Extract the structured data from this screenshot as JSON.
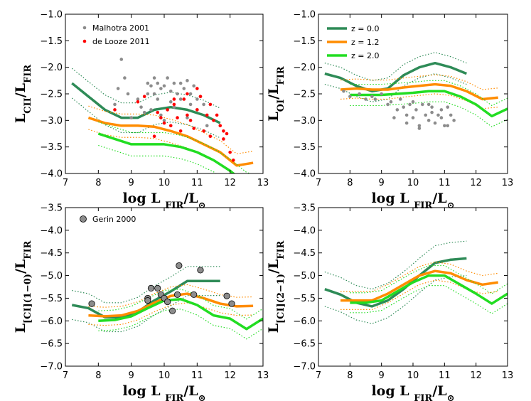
{
  "figure": {
    "xlabel": "log L",
    "xlabel_sub": "FIR",
    "xlabel_unit": "/L",
    "xlabel_unit_sub": "⊙"
  },
  "series_names": {
    "z0": "z = 0.0",
    "z12": "z = 1.2",
    "z20": "z = 2.0"
  },
  "colors": {
    "z0": "#2e8b57",
    "z12": "#ff8c00",
    "z20": "#22dd22",
    "gray": "#8c8c8c",
    "red": "#ff0000"
  },
  "chart_data": [
    {
      "id": "cii",
      "type": "line",
      "title": "",
      "ylabel": "L",
      "ylabel_sub": "CII",
      "ylabel_tail": "/L",
      "ylabel_tail_sub": "FIR",
      "xlim": [
        7,
        13
      ],
      "ylim": [
        -4.0,
        -1.0
      ],
      "xticks": [
        "7",
        "8",
        "9",
        "10",
        "11",
        "12",
        "13"
      ],
      "yticks": [
        "−4.0",
        "−3.5",
        "−3.0",
        "−2.5",
        "−2.0",
        "−1.5",
        "−1.0"
      ],
      "legend": [
        {
          "name": "Malhotra 2001",
          "color": "#8c8c8c"
        },
        {
          "name": "de Looze 2011",
          "color": "#ff0000"
        }
      ],
      "series": [
        {
          "key": "z0",
          "x": [
            7.2,
            7.7,
            8.2,
            8.7,
            9.2,
            9.7,
            10.2,
            10.7,
            11.2,
            11.7
          ],
          "y": [
            -2.3,
            -2.55,
            -2.8,
            -2.95,
            -2.95,
            -2.8,
            -2.75,
            -2.8,
            -2.9,
            -3.05
          ],
          "band": [
            0.28,
            0.28,
            0.28,
            0.28,
            0.28,
            0.28,
            0.28,
            0.28,
            0.28,
            0.28
          ]
        },
        {
          "key": "z12",
          "x": [
            7.7,
            8.2,
            8.7,
            9.2,
            9.7,
            10.2,
            10.7,
            11.2,
            11.7,
            12.2,
            12.7
          ],
          "y": [
            -2.95,
            -3.05,
            -3.1,
            -3.1,
            -3.12,
            -3.2,
            -3.3,
            -3.45,
            -3.6,
            -3.85,
            -3.8
          ],
          "band": [
            0.22,
            0.22,
            0.22,
            0.22,
            0.22,
            0.22,
            0.22,
            0.22,
            0.22,
            0.22,
            0.22
          ]
        },
        {
          "key": "z20",
          "x": [
            8.0,
            8.5,
            9.0,
            9.5,
            10.0,
            10.5,
            11.0,
            11.5,
            12.0,
            12.5,
            13.0
          ],
          "y": [
            -3.25,
            -3.35,
            -3.45,
            -3.45,
            -3.45,
            -3.5,
            -3.6,
            -3.75,
            -3.95,
            -4.2,
            -4.3
          ],
          "band": [
            0.22,
            0.22,
            0.22,
            0.22,
            0.22,
            0.22,
            0.22,
            0.22,
            0.22,
            0.22,
            0.22
          ]
        }
      ],
      "points": [
        {
          "set": "gray",
          "r": 2.3,
          "x": [
            8.7,
            8.8,
            8.9,
            9.2,
            9.3,
            9.5,
            9.5,
            9.6,
            9.7,
            9.7,
            9.8,
            9.8,
            9.9,
            10.0,
            10.1,
            10.2,
            10.2,
            10.3,
            10.4,
            10.5,
            10.5,
            10.6,
            10.7,
            10.8,
            10.8,
            10.9,
            11.0,
            11.0,
            11.1,
            11.2,
            8.6,
            9.0,
            9.4,
            9.9,
            10.3,
            10.7,
            11.3,
            8.5,
            9.6,
            10.0
          ],
          "y": [
            -1.85,
            -2.2,
            -2.5,
            -2.6,
            -2.75,
            -2.3,
            -2.5,
            -2.35,
            -2.2,
            -2.5,
            -2.3,
            -2.6,
            -2.4,
            -2.35,
            -2.2,
            -2.45,
            -2.65,
            -2.3,
            -2.5,
            -2.3,
            -2.6,
            -2.4,
            -2.25,
            -2.5,
            -2.7,
            -2.35,
            -2.6,
            -2.8,
            -2.55,
            -2.7,
            -2.4,
            -2.95,
            -2.85,
            -2.9,
            -2.75,
            -2.95,
            -3.1,
            -2.7,
            -2.8,
            -3.0
          ]
        },
        {
          "set": "red",
          "r": 2.3,
          "x": [
            8.5,
            9.2,
            9.4,
            9.7,
            9.8,
            9.9,
            10.0,
            10.1,
            10.2,
            10.3,
            10.4,
            10.5,
            10.6,
            10.7,
            10.8,
            10.9,
            11.0,
            11.1,
            11.2,
            11.3,
            11.4,
            11.5,
            11.6,
            11.7,
            11.8,
            11.9,
            12.0,
            12.1,
            10.3,
            10.7,
            11.0,
            11.4,
            11.8
          ],
          "y": [
            -2.8,
            -2.65,
            -2.55,
            -3.3,
            -2.85,
            -2.95,
            -3.05,
            -2.8,
            -3.1,
            -2.7,
            -2.95,
            -3.2,
            -2.6,
            -2.9,
            -3.0,
            -3.15,
            -2.8,
            -2.55,
            -3.2,
            -2.9,
            -3.3,
            -3.0,
            -2.9,
            -3.1,
            -3.35,
            -3.25,
            -3.6,
            -3.75,
            -2.6,
            -2.5,
            -2.4,
            -2.7,
            -3.2
          ]
        }
      ]
    },
    {
      "id": "oi",
      "type": "line",
      "title": "",
      "ylabel": "L",
      "ylabel_sub": "OI",
      "ylabel_tail": "/L",
      "ylabel_tail_sub": "FIR",
      "xlim": [
        7,
        13
      ],
      "ylim": [
        -4.0,
        -1.0
      ],
      "xticks": [
        "7",
        "8",
        "9",
        "10",
        "11",
        "12",
        "13"
      ],
      "yticks": [
        "−4.0",
        "−3.5",
        "−3.0",
        "−2.5",
        "−2.0",
        "−1.5",
        "−1.0"
      ],
      "legend": [
        {
          "name": "z = 0.0",
          "color": "#2e8b57"
        },
        {
          "name": "z = 1.2",
          "color": "#ff8c00"
        },
        {
          "name": "z = 2.0",
          "color": "#22dd22"
        }
      ],
      "series": [
        {
          "key": "z0",
          "x": [
            7.2,
            7.7,
            8.2,
            8.7,
            9.2,
            9.7,
            10.2,
            10.7,
            11.2,
            11.7
          ],
          "y": [
            -2.12,
            -2.2,
            -2.35,
            -2.45,
            -2.4,
            -2.15,
            -2.0,
            -1.92,
            -2.0,
            -2.12
          ],
          "band": [
            0.2,
            0.2,
            0.2,
            0.2,
            0.2,
            0.2,
            0.2,
            0.2,
            0.2,
            0.2
          ]
        },
        {
          "key": "z12",
          "x": [
            7.7,
            8.2,
            8.7,
            9.2,
            9.7,
            10.2,
            10.7,
            11.2,
            11.7,
            12.2,
            12.7
          ],
          "y": [
            -2.42,
            -2.4,
            -2.42,
            -2.42,
            -2.38,
            -2.35,
            -2.32,
            -2.35,
            -2.45,
            -2.6,
            -2.57
          ],
          "band": [
            0.18,
            0.18,
            0.18,
            0.18,
            0.18,
            0.18,
            0.18,
            0.18,
            0.18,
            0.18,
            0.18
          ]
        },
        {
          "key": "z20",
          "x": [
            8.0,
            8.5,
            9.0,
            9.5,
            10.0,
            10.5,
            11.0,
            11.5,
            12.0,
            12.5,
            13.0
          ],
          "y": [
            -2.52,
            -2.52,
            -2.52,
            -2.5,
            -2.48,
            -2.45,
            -2.45,
            -2.55,
            -2.7,
            -2.92,
            -2.78
          ],
          "band": [
            0.2,
            0.2,
            0.2,
            0.2,
            0.2,
            0.2,
            0.2,
            0.2,
            0.2,
            0.2,
            0.2
          ]
        }
      ],
      "points": [
        {
          "set": "gray",
          "r": 2.3,
          "x": [
            7.8,
            8.0,
            8.3,
            8.5,
            8.7,
            8.8,
            9.0,
            9.2,
            9.3,
            9.5,
            9.6,
            9.7,
            9.8,
            9.9,
            10.0,
            10.1,
            10.2,
            10.3,
            10.4,
            10.5,
            10.6,
            10.7,
            10.8,
            10.9,
            11.0,
            11.1,
            11.2,
            11.3,
            9.4,
            9.8,
            10.2,
            10.5,
            10.9,
            11.1,
            10.0,
            10.6
          ],
          "y": [
            -2.45,
            -2.55,
            -2.5,
            -2.6,
            -2.55,
            -2.6,
            -2.5,
            -2.7,
            -2.65,
            -2.8,
            -2.6,
            -2.75,
            -2.9,
            -2.7,
            -2.65,
            -2.8,
            -3.1,
            -2.7,
            -2.9,
            -3.0,
            -2.85,
            -3.05,
            -2.9,
            -2.8,
            -3.1,
            -2.75,
            -2.9,
            -3.0,
            -2.95,
            -3.05,
            -3.15,
            -2.7,
            -2.95,
            -3.1,
            -2.95,
            -2.75
          ]
        }
      ]
    },
    {
      "id": "ci10",
      "type": "line",
      "title": "",
      "ylabel": "L",
      "ylabel_sub": "[CI](1−0)",
      "ylabel_tail": "/L",
      "ylabel_tail_sub": "FIR",
      "xlim": [
        7,
        13
      ],
      "ylim": [
        -7.0,
        -3.5
      ],
      "xticks": [
        "7",
        "8",
        "9",
        "10",
        "11",
        "12",
        "13"
      ],
      "yticks": [
        "−7.0",
        "−6.5",
        "−6.0",
        "−5.5",
        "−5.0",
        "−4.5",
        "−4.0",
        "−3.5"
      ],
      "legend": [
        {
          "name": "Gerin 2000",
          "color": "#8c8c8c"
        }
      ],
      "series": [
        {
          "key": "z0",
          "x": [
            7.2,
            7.7,
            8.2,
            8.7,
            9.2,
            9.7,
            10.2,
            10.7,
            11.2,
            11.7
          ],
          "y": [
            -5.65,
            -5.72,
            -5.92,
            -5.92,
            -5.8,
            -5.55,
            -5.35,
            -5.12,
            -5.12,
            -5.12
          ],
          "band": [
            0.32,
            0.32,
            0.32,
            0.32,
            0.32,
            0.32,
            0.32,
            0.32,
            0.32,
            0.32
          ]
        },
        {
          "key": "z12",
          "x": [
            7.7,
            8.2,
            8.7,
            9.2,
            9.7,
            10.2,
            10.7,
            11.2,
            11.7,
            12.2,
            12.7
          ],
          "y": [
            -5.88,
            -5.9,
            -5.88,
            -5.78,
            -5.6,
            -5.45,
            -5.4,
            -5.5,
            -5.62,
            -5.68,
            -5.67
          ],
          "band": [
            0.2,
            0.2,
            0.2,
            0.2,
            0.2,
            0.2,
            0.2,
            0.2,
            0.2,
            0.2,
            0.2
          ]
        },
        {
          "key": "z20",
          "x": [
            8.0,
            8.5,
            9.0,
            9.5,
            10.0,
            10.5,
            11.0,
            11.5,
            12.0,
            12.5,
            13.0
          ],
          "y": [
            -6.0,
            -5.98,
            -5.9,
            -5.72,
            -5.55,
            -5.52,
            -5.65,
            -5.88,
            -5.95,
            -6.18,
            -5.95
          ],
          "band": [
            0.22,
            0.22,
            0.22,
            0.22,
            0.22,
            0.22,
            0.22,
            0.22,
            0.22,
            0.22,
            0.22
          ]
        }
      ],
      "points": [
        {
          "set": "gray",
          "r": 4.2,
          "x": [
            7.8,
            9.5,
            9.6,
            9.8,
            9.9,
            9.5,
            10.0,
            10.1,
            10.4,
            10.45,
            10.9,
            11.1,
            11.9,
            12.05
          ],
          "y": [
            -5.62,
            -5.5,
            -5.28,
            -5.28,
            -5.42,
            -5.55,
            -5.5,
            -5.58,
            -5.42,
            -4.78,
            -5.42,
            -4.88,
            -5.45,
            -5.62
          ]
        },
        {
          "set": "gray",
          "r": 4.2,
          "x": [
            10.25
          ],
          "y": [
            -5.78
          ]
        }
      ]
    },
    {
      "id": "ci21",
      "type": "line",
      "title": "",
      "ylabel": "L",
      "ylabel_sub": "[CI](2−1)",
      "ylabel_tail": "/L",
      "ylabel_tail_sub": "FIR",
      "xlim": [
        7,
        13
      ],
      "ylim": [
        -7.0,
        -3.5
      ],
      "xticks": [
        "7",
        "8",
        "9",
        "10",
        "11",
        "12",
        "13"
      ],
      "yticks": [
        "−7.0",
        "−6.5",
        "−6.0",
        "−5.5",
        "−5.0",
        "−4.5",
        "−4.0",
        "−3.5"
      ],
      "legend": [],
      "series": [
        {
          "key": "z0",
          "x": [
            7.2,
            7.7,
            8.2,
            8.7,
            9.2,
            9.7,
            10.2,
            10.7,
            11.2,
            11.7
          ],
          "y": [
            -5.3,
            -5.42,
            -5.6,
            -5.68,
            -5.55,
            -5.3,
            -5.0,
            -4.72,
            -4.65,
            -4.62
          ],
          "band": [
            0.38,
            0.38,
            0.38,
            0.38,
            0.38,
            0.38,
            0.38,
            0.38,
            0.38,
            0.38
          ]
        },
        {
          "key": "z12",
          "x": [
            7.7,
            8.2,
            8.7,
            9.2,
            9.7,
            10.2,
            10.7,
            11.2,
            11.7,
            12.2,
            12.7
          ],
          "y": [
            -5.55,
            -5.55,
            -5.55,
            -5.4,
            -5.2,
            -5.0,
            -4.9,
            -4.95,
            -5.1,
            -5.2,
            -5.15
          ],
          "band": [
            0.2,
            0.2,
            0.2,
            0.2,
            0.2,
            0.2,
            0.2,
            0.2,
            0.2,
            0.2,
            0.2
          ]
        },
        {
          "key": "z20",
          "x": [
            8.0,
            8.5,
            9.0,
            9.5,
            10.0,
            10.5,
            11.0,
            11.5,
            12.0,
            12.5,
            13.0
          ],
          "y": [
            -5.6,
            -5.6,
            -5.55,
            -5.35,
            -5.15,
            -5.0,
            -5.0,
            -5.2,
            -5.4,
            -5.62,
            -5.4
          ],
          "band": [
            0.22,
            0.22,
            0.22,
            0.22,
            0.22,
            0.22,
            0.22,
            0.22,
            0.22,
            0.22,
            0.22
          ]
        }
      ],
      "points": []
    }
  ]
}
